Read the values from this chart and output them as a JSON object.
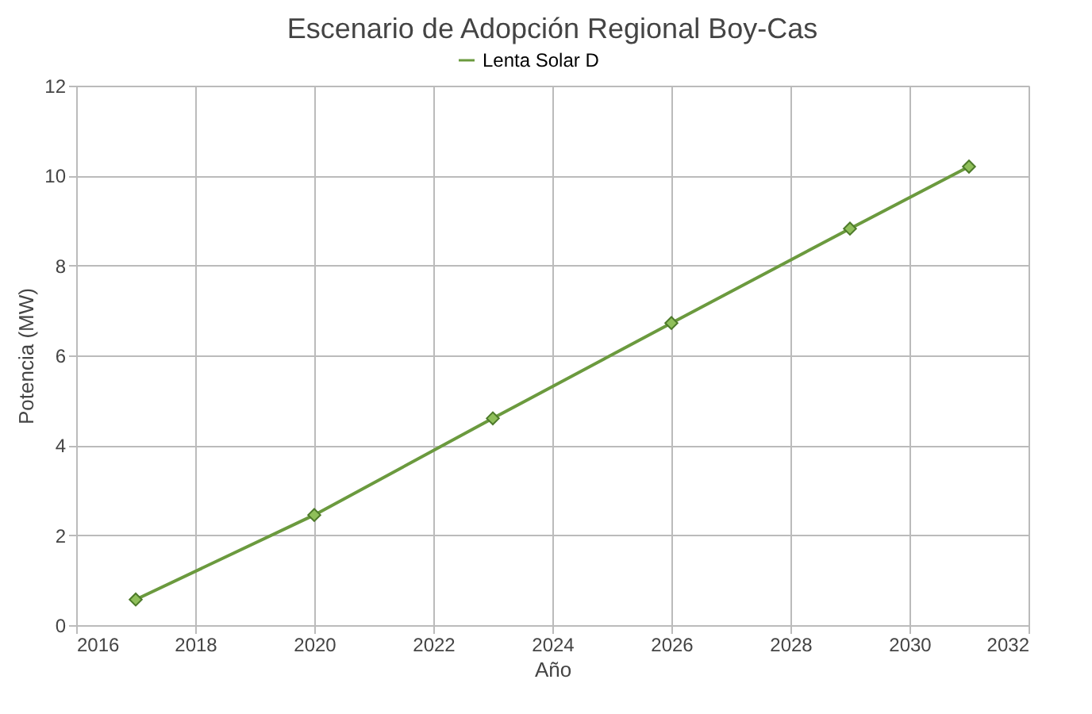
{
  "chart_data": {
    "type": "line",
    "title": "Escenario de Adopción Regional Boy-Cas",
    "xlabel": "Año",
    "ylabel": "Potencia (MW)",
    "x": [
      2017,
      2020,
      2023,
      2026,
      2029,
      2031
    ],
    "series": [
      {
        "name": "Lenta Solar D",
        "color": "#6b9a3e",
        "values": [
          0.57,
          2.45,
          4.6,
          6.72,
          8.82,
          10.2
        ]
      }
    ],
    "xlim": [
      2016,
      2032
    ],
    "xticks": [
      2016,
      2018,
      2020,
      2022,
      2024,
      2026,
      2028,
      2030,
      2032
    ],
    "ylim": [
      0,
      12
    ],
    "yticks": [
      0,
      2,
      4,
      6,
      8,
      10,
      12
    ],
    "grid": true,
    "legend": "top",
    "marker": "diamond",
    "line_style": "solid"
  }
}
